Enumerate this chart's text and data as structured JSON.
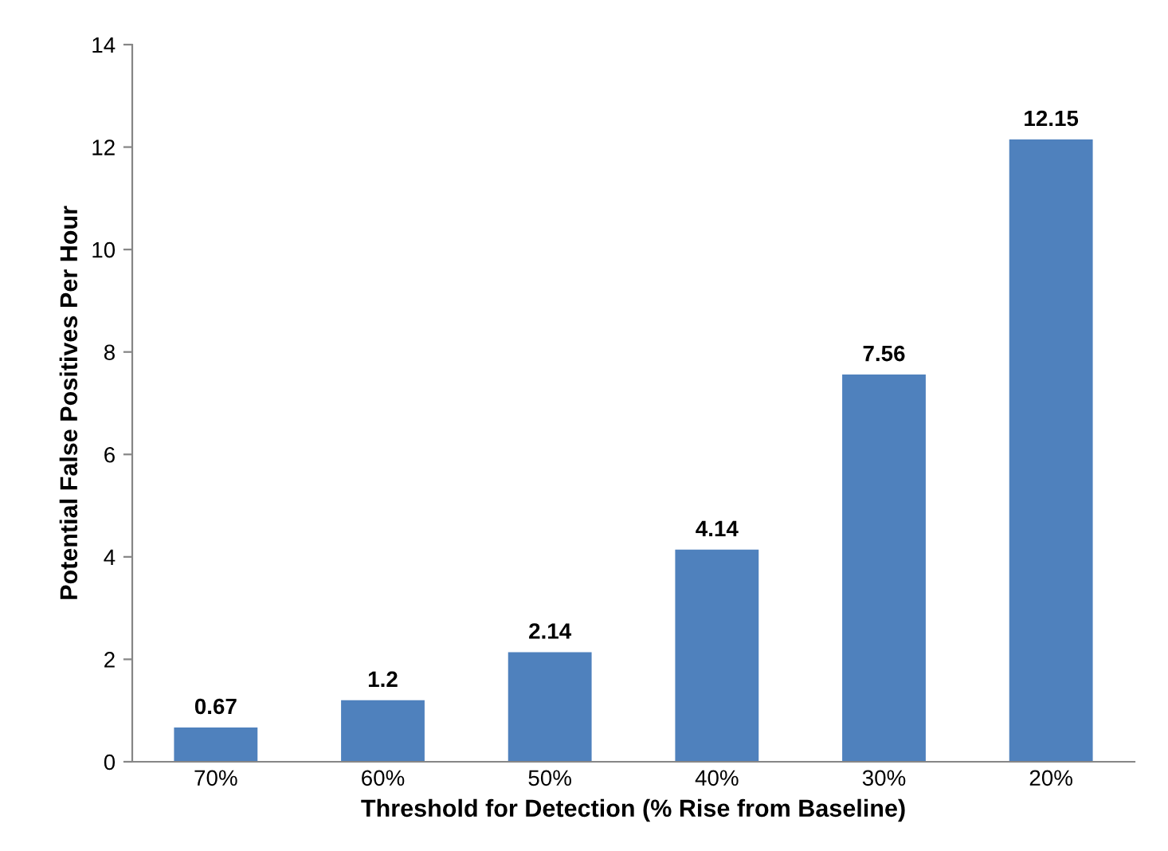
{
  "chart_data": {
    "type": "bar",
    "xlabel": "Threshold for Detection (% Rise from Baseline)",
    "ylabel": "Potential False Positives Per Hour",
    "categories": [
      "70%",
      "60%",
      "50%",
      "40%",
      "30%",
      "20%"
    ],
    "values": [
      0.67,
      1.2,
      2.14,
      4.14,
      7.56,
      12.15
    ],
    "color": "#4f81bd",
    "ylim": [
      0,
      14
    ],
    "yticks": [
      0,
      2,
      4,
      6,
      8,
      10,
      12,
      14
    ],
    "data_labels": true,
    "grid": false,
    "legend": false
  }
}
